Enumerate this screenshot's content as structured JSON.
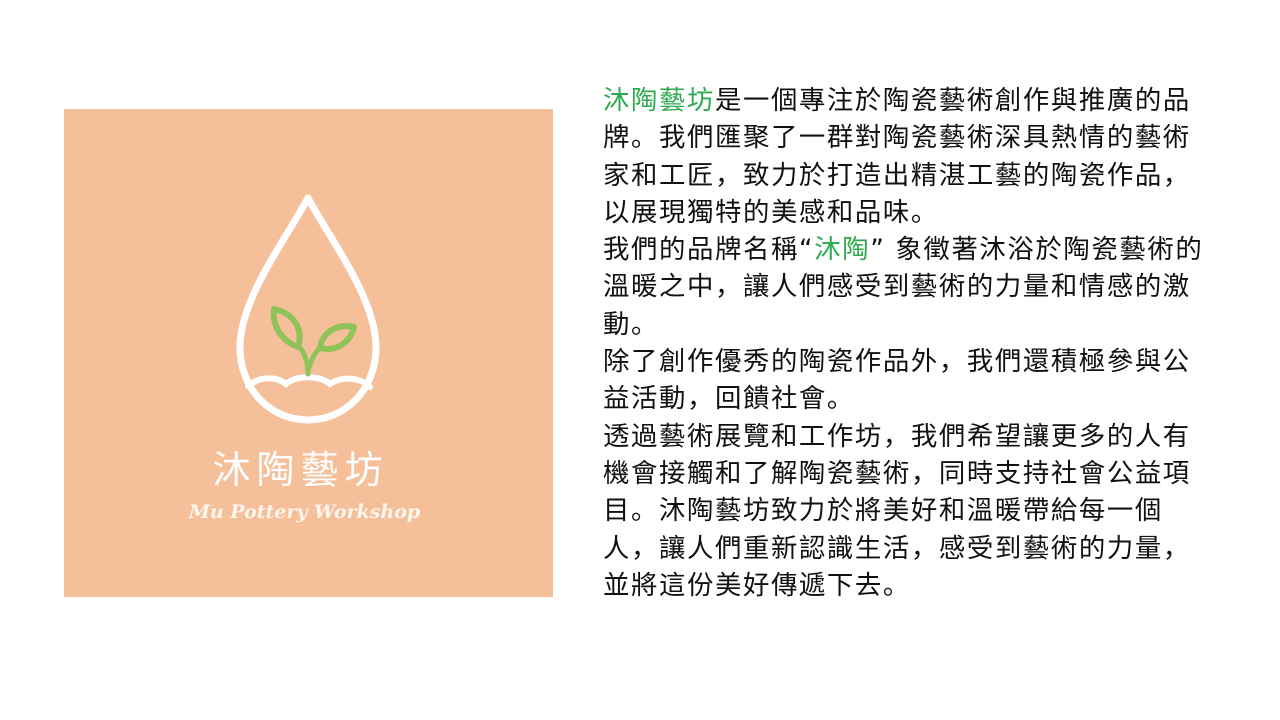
{
  "logo": {
    "name": "沐陶藝坊",
    "subtitle": "Mu Pottery Workshop",
    "background_color": "#f5bf9a",
    "leaf_color": "#8fc35a",
    "line_color": "#ffffff"
  },
  "paragraphs": [
    {
      "highlight": "沐陶藝坊",
      "text": "是一個專注於陶瓷藝術創作與推廣的品牌。我們匯聚了一群對陶瓷藝術深具熱情的藝術家和工匠，致力於打造出精湛工藝的陶瓷作品，以展現獨特的美感和品味。"
    },
    {
      "before": "我們的品牌名稱“",
      "highlight": "沐陶",
      "after": "” 象徵著沐浴於陶瓷藝術的溫暖之中，讓人們感受到藝術的力量和情感的激動。"
    },
    {
      "text": "除了創作優秀的陶瓷作品外，我們還積極參與公益活動，回饋社會。"
    },
    {
      "text": "透過藝術展覽和工作坊，我們希望讓更多的人有機會接觸和了解陶瓷藝術，同時支持社會公益項目。沐陶藝坊致力於將美好和溫暖帶給每一個人，讓人們重新認識生活，感受到藝術的力量，並將這份美好傳遞下去。"
    }
  ],
  "highlight_color": "#2eaa4f"
}
